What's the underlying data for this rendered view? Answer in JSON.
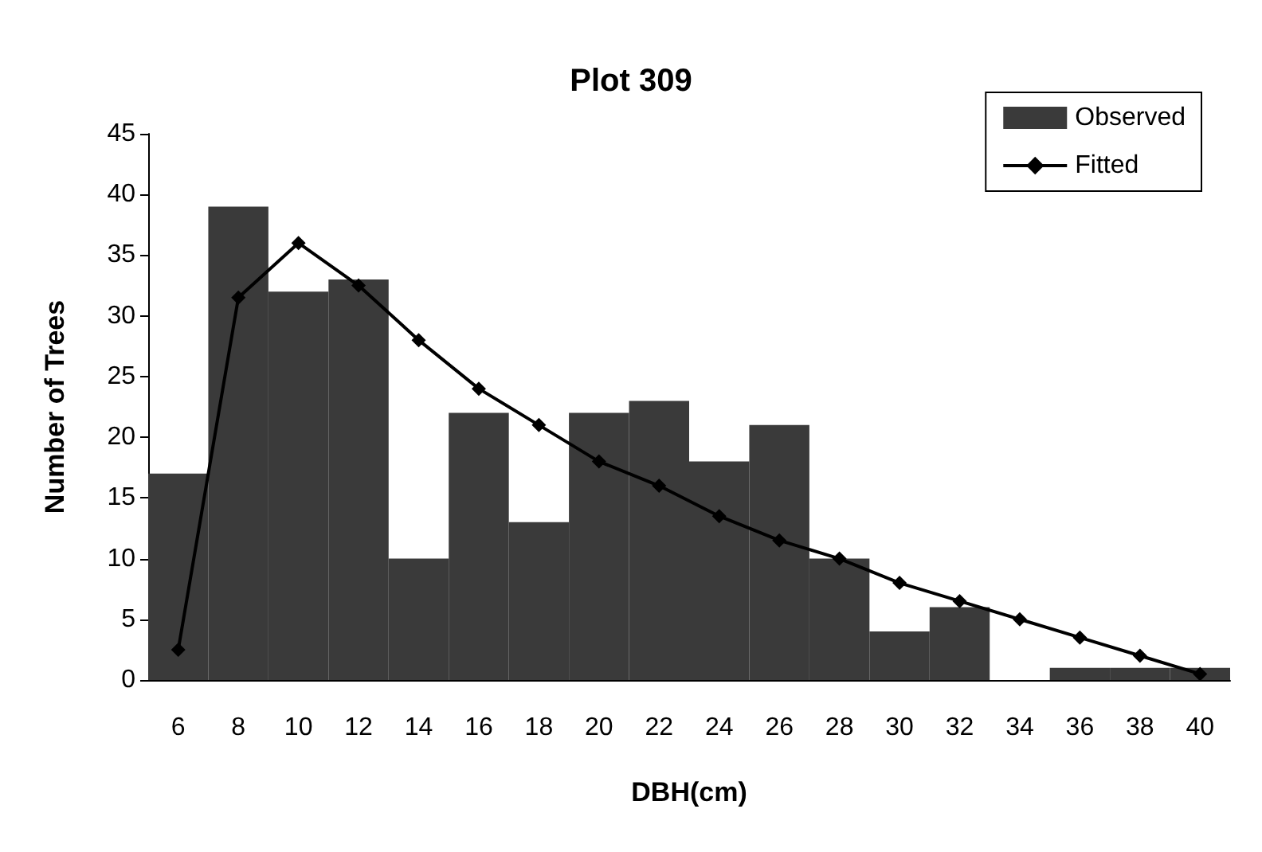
{
  "chart_data": {
    "type": "bar",
    "title": "Plot 309",
    "xlabel": "DBH(cm)",
    "ylabel": "Number of Trees",
    "categories": [
      "6",
      "8",
      "10",
      "12",
      "14",
      "16",
      "18",
      "20",
      "22",
      "24",
      "26",
      "28",
      "30",
      "32",
      "34",
      "36",
      "38",
      "40"
    ],
    "series": [
      {
        "name": "Observed",
        "type": "bar",
        "color": "#3a3a3a",
        "values": [
          17,
          39,
          32,
          33,
          10,
          22,
          13,
          22,
          23,
          18,
          21,
          10,
          4,
          6,
          0,
          1,
          1,
          1
        ]
      },
      {
        "name": "Fitted",
        "type": "line",
        "color": "#000000",
        "marker": "diamond",
        "values": [
          2.5,
          31.5,
          36,
          32.5,
          28,
          24,
          21,
          18,
          16,
          13.5,
          11.5,
          10,
          8,
          6.5,
          5,
          3.5,
          2,
          0.5
        ]
      }
    ],
    "ylim": [
      0,
      45
    ],
    "yticks": [
      0,
      5,
      10,
      15,
      20,
      25,
      30,
      35,
      40,
      45
    ],
    "legend": "top right"
  }
}
